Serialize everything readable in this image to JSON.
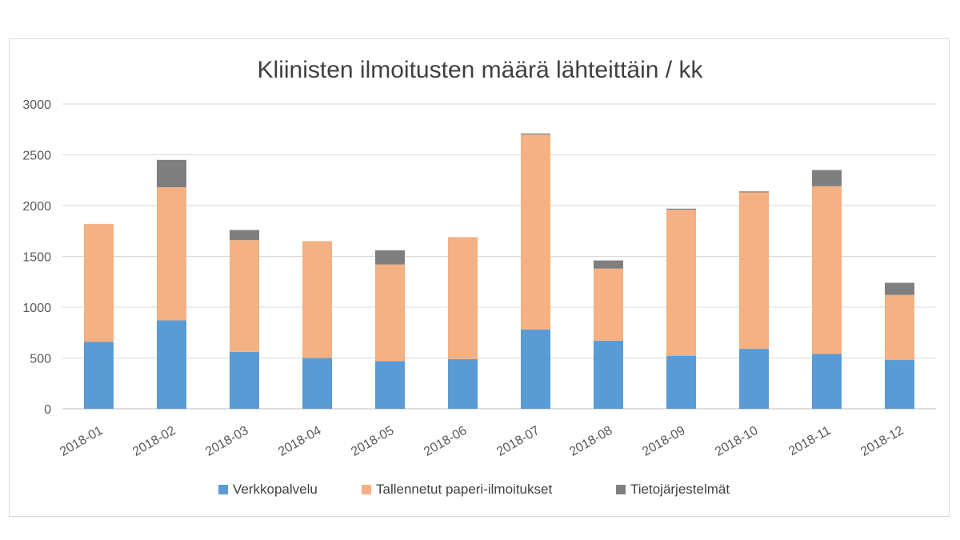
{
  "chart_data": {
    "type": "bar",
    "stacked": true,
    "title": "Kliinisten ilmoitusten määrä lähteittäin / kk",
    "xlabel": "",
    "ylabel": "",
    "ylim": [
      0,
      3000
    ],
    "yticks": [
      0,
      500,
      1000,
      1500,
      2000,
      2500,
      3000
    ],
    "grid": true,
    "legend_position": "bottom",
    "categories": [
      "2018-01",
      "2018-02",
      "2018-03",
      "2018-04",
      "2018-05",
      "2018-06",
      "2018-07",
      "2018-08",
      "2018-09",
      "2018-10",
      "2018-11",
      "2018-12"
    ],
    "series": [
      {
        "name": "Verkkopalvelu",
        "color": "#5b9bd5",
        "values": [
          660,
          870,
          560,
          500,
          470,
          490,
          780,
          670,
          520,
          590,
          540,
          480
        ]
      },
      {
        "name": "Tallennetut paperi-ilmoitukset",
        "color": "#f4b183",
        "values": [
          1160,
          1310,
          1100,
          1150,
          950,
          1200,
          1920,
          710,
          1440,
          1540,
          1650,
          640
        ]
      },
      {
        "name": "Tietojärjestelmät",
        "color": "#7f7f7f",
        "values": [
          0,
          270,
          100,
          0,
          140,
          0,
          10,
          80,
          10,
          10,
          160,
          120
        ]
      }
    ]
  }
}
